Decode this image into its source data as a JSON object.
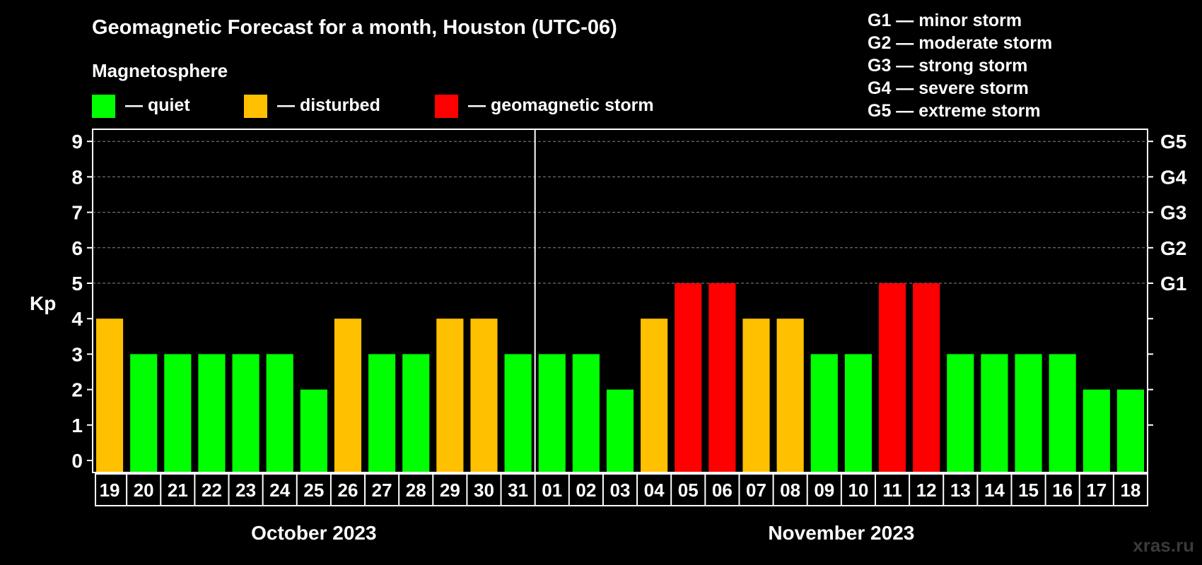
{
  "title": "Geomagnetic Forecast for a month, Houston (UTC-06)",
  "legend": {
    "heading": "Magnetosphere",
    "items": [
      {
        "key": "quiet",
        "label": "— quiet",
        "color": "#00ff00"
      },
      {
        "key": "disturbed",
        "label": "— disturbed",
        "color": "#ffc000"
      },
      {
        "key": "storm",
        "label": "— geomagnetic storm",
        "color": "#ff0000"
      }
    ]
  },
  "storm_scale": [
    "G1 — minor storm",
    "G2 — moderate storm",
    "G3 — strong storm",
    "G4 — severe storm",
    "G5 — extreme storm"
  ],
  "watermark": "xras.ru",
  "chart_data": {
    "type": "bar",
    "title": "Geomagnetic Forecast for a month, Houston (UTC-06)",
    "ylabel": "Kp",
    "xlabel": "",
    "ylim": [
      0,
      9
    ],
    "yticks": [
      0,
      1,
      2,
      3,
      4,
      5,
      6,
      7,
      8,
      9
    ],
    "gridlines": [
      5,
      6,
      7,
      8,
      9
    ],
    "right_axis": [
      {
        "kp": 5,
        "label": "G1"
      },
      {
        "kp": 6,
        "label": "G2"
      },
      {
        "kp": 7,
        "label": "G3"
      },
      {
        "kp": 8,
        "label": "G4"
      },
      {
        "kp": 9,
        "label": "G5"
      }
    ],
    "categories": [
      "19",
      "20",
      "21",
      "22",
      "23",
      "24",
      "25",
      "26",
      "27",
      "28",
      "29",
      "30",
      "31",
      "01",
      "02",
      "03",
      "04",
      "05",
      "06",
      "07",
      "08",
      "09",
      "10",
      "11",
      "12",
      "13",
      "14",
      "15",
      "16",
      "17",
      "18"
    ],
    "values": [
      4,
      3,
      3,
      3,
      3,
      3,
      2,
      4,
      3,
      3,
      4,
      4,
      3,
      3,
      3,
      2,
      4,
      5,
      5,
      4,
      4,
      3,
      3,
      5,
      5,
      3,
      3,
      3,
      3,
      2,
      2
    ],
    "months": [
      {
        "label": "October 2023",
        "count": 13
      },
      {
        "label": "November 2023",
        "count": 18
      }
    ],
    "color_rule": {
      "quiet_max": 3,
      "disturbed": 4,
      "storm_min": 5
    }
  }
}
